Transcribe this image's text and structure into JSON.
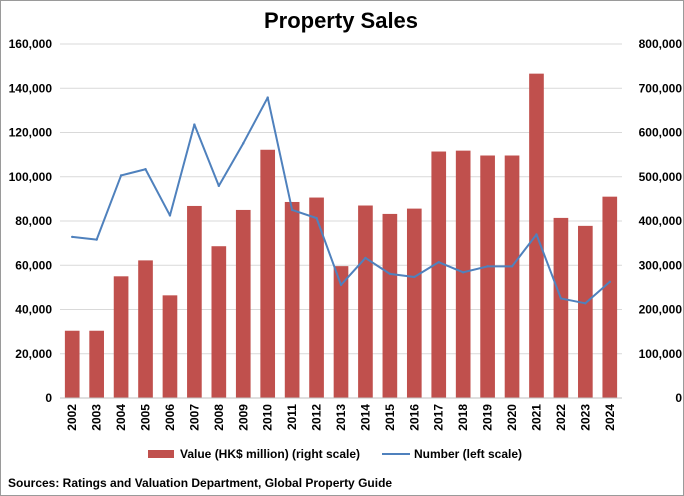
{
  "chart_data": {
    "type": "bar",
    "title": "Property Sales",
    "categories": [
      "2002",
      "2003",
      "2004",
      "2005",
      "2006",
      "2007",
      "2008",
      "2009",
      "2010",
      "2011",
      "2012",
      "2013",
      "2014",
      "2015",
      "2016",
      "2017",
      "2018",
      "2019",
      "2020",
      "2021",
      "2022",
      "2023",
      "2024"
    ],
    "series": [
      {
        "name": "Value (HK$ million) (right scale)",
        "kind": "bar",
        "axis": "right",
        "color": "#C0504D",
        "values": [
          152000,
          152000,
          275000,
          311000,
          232000,
          434000,
          343000,
          425000,
          561000,
          443000,
          453000,
          298000,
          435000,
          416000,
          428000,
          557000,
          559000,
          548000,
          548000,
          733000,
          407000,
          389000,
          455000
        ]
      },
      {
        "name": "Number (left scale)",
        "kind": "line",
        "axis": "left",
        "color": "#4F81BD",
        "values": [
          72800,
          71600,
          100600,
          103400,
          82500,
          123600,
          95900,
          115100,
          135800,
          85000,
          81300,
          51100,
          63300,
          56100,
          54700,
          61400,
          56800,
          59500,
          59500,
          73900,
          45000,
          42800,
          52500
        ]
      }
    ],
    "ylim_left": [
      0,
      160000
    ],
    "ylim_right": [
      0,
      800000
    ],
    "left_ticks": [
      "0",
      "20,000",
      "40,000",
      "60,000",
      "80,000",
      "100,000",
      "120,000",
      "140,000",
      "160,000"
    ],
    "right_ticks": [
      "0",
      "100,000",
      "200,000",
      "300,000",
      "400,000",
      "500,000",
      "600,000",
      "700,000",
      "800,000"
    ],
    "legend": {
      "position": "bottom",
      "bar_label": "Value (HK$ million) (right scale)",
      "line_label": "Number (left scale)"
    },
    "source": "Sources: Ratings and Valuation Department, Global Property Guide",
    "grid": true
  }
}
